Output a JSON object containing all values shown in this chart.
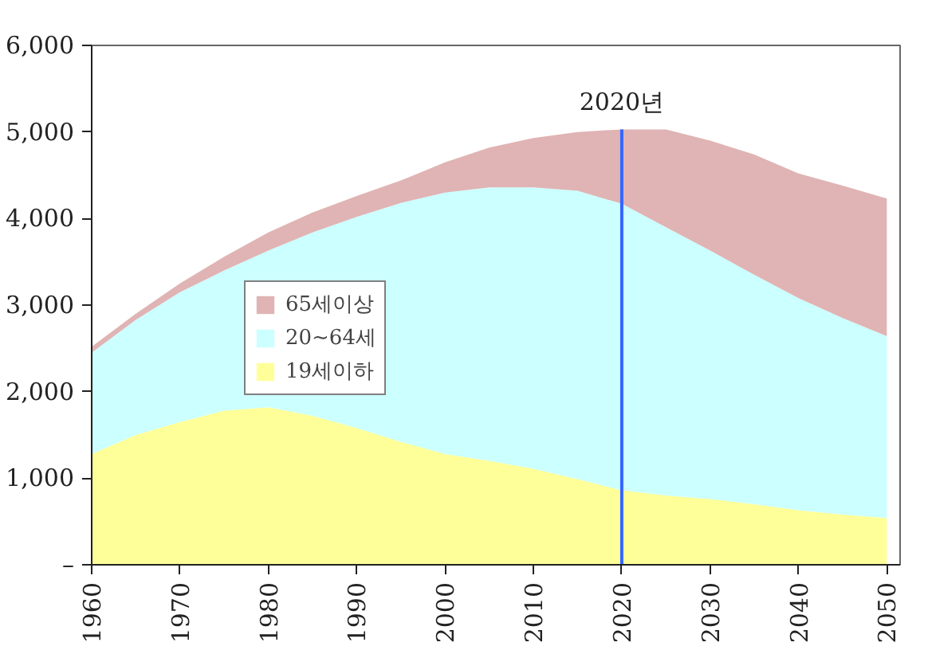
{
  "chart_data": {
    "type": "area",
    "stacked": true,
    "x": [
      1960,
      1965,
      1970,
      1975,
      1980,
      1985,
      1990,
      1995,
      2000,
      2005,
      2010,
      2015,
      2020,
      2025,
      2030,
      2035,
      2040,
      2045,
      2050
    ],
    "series": [
      {
        "name": "19세이하",
        "color": "#ffff99",
        "values": [
          1280,
          1500,
          1650,
          1780,
          1820,
          1720,
          1580,
          1420,
          1280,
          1200,
          1110,
          990,
          860,
          800,
          760,
          700,
          630,
          580,
          540
        ]
      },
      {
        "name": "20~64세",
        "color": "#ccffff",
        "values": [
          1170,
          1330,
          1500,
          1620,
          1810,
          2120,
          2440,
          2760,
          3020,
          3160,
          3250,
          3330,
          3310,
          3100,
          2870,
          2650,
          2450,
          2270,
          2100
        ]
      },
      {
        "name": "65세이상",
        "color": "#e0b4b4",
        "values": [
          70,
          70,
          100,
          160,
          210,
          230,
          240,
          260,
          350,
          460,
          570,
          680,
          860,
          1130,
          1270,
          1390,
          1440,
          1530,
          1590
        ]
      }
    ],
    "xlim": [
      1960,
      2051.5
    ],
    "xticks": [
      1960,
      1970,
      1980,
      1990,
      2000,
      2010,
      2020,
      2030,
      2040,
      2050
    ],
    "ylim": [
      0,
      6000
    ],
    "yticks": [
      {
        "value": 0,
        "label": "–"
      },
      {
        "value": 1000,
        "label": "1,000"
      },
      {
        "value": 2000,
        "label": "2,000"
      },
      {
        "value": 3000,
        "label": "3,000"
      },
      {
        "value": 4000,
        "label": "4,000"
      },
      {
        "value": 5000,
        "label": "5,000"
      },
      {
        "value": 6000,
        "label": "6,000"
      }
    ],
    "ref_lines": [
      {
        "axis": "x",
        "value": 2020,
        "label": "2020년",
        "color": "#3366ff"
      }
    ],
    "grid": false,
    "legend": "left"
  }
}
